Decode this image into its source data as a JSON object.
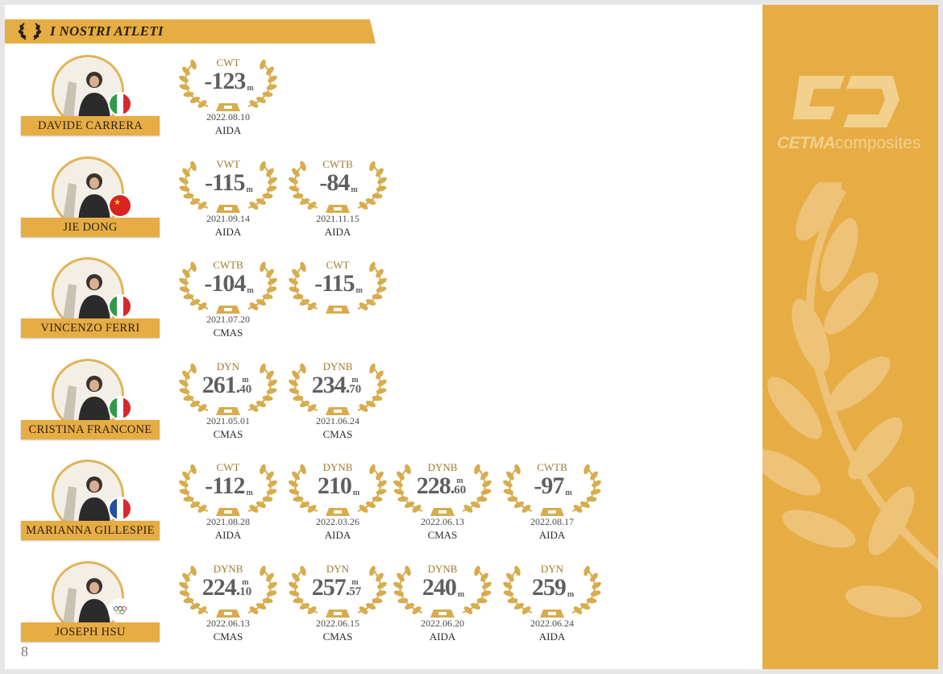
{
  "header": {
    "title": "I NOSTRI ATLETI",
    "icon": "laurel-icon"
  },
  "sidebar": {
    "brand": "CETMA",
    "brand_suffix": "composites",
    "color": "#e6ad45"
  },
  "page_number": "8",
  "athletes": [
    {
      "name": "DAVIDE CARRERA",
      "flag": "italy",
      "records": [
        {
          "discipline": "CWT",
          "value": "-123",
          "decimals": "",
          "date": "2022.08.10",
          "org": "AIDA"
        }
      ]
    },
    {
      "name": "JIE DONG",
      "flag": "china",
      "records": [
        {
          "discipline": "VWT",
          "value": "-115",
          "decimals": "",
          "date": "2021.09.14",
          "org": "AIDA"
        },
        {
          "discipline": "CWTB",
          "value": "-84",
          "decimals": "",
          "date": "2021.11.15",
          "org": "AIDA"
        }
      ]
    },
    {
      "name": "VINCENZO FERRI",
      "flag": "italy",
      "records": [
        {
          "discipline": "CWTB",
          "value": "-104",
          "decimals": "",
          "date": "2021.07.20",
          "org": "CMAS"
        },
        {
          "discipline": "CWT",
          "value": "-115",
          "decimals": "",
          "date": "",
          "org": ""
        }
      ]
    },
    {
      "name": "CRISTINA FRANCONE",
      "flag": "italy",
      "records": [
        {
          "discipline": "DYN",
          "value": "261",
          "decimals": "40",
          "date": "2021.05.01",
          "org": "CMAS"
        },
        {
          "discipline": "DYNB",
          "value": "234",
          "decimals": "70",
          "date": "2021.06.24",
          "org": "CMAS"
        }
      ]
    },
    {
      "name": "MARIANNA GILLESPIE",
      "flag": "france",
      "records": [
        {
          "discipline": "CWT",
          "value": "-112",
          "decimals": "",
          "date": "2021.08.28",
          "org": "AIDA"
        },
        {
          "discipline": "DYNB",
          "value": "210",
          "decimals": "",
          "date": "2022.03.26",
          "org": "AIDA"
        },
        {
          "discipline": "DYNB",
          "value": "228",
          "decimals": "60",
          "date": "2022.06.13",
          "org": "CMAS"
        },
        {
          "discipline": "CWTB",
          "value": "-97",
          "decimals": "",
          "date": "2022.08.17",
          "org": "AIDA"
        }
      ]
    },
    {
      "name": "JOSEPH HSU",
      "flag": "chinese-taipei-olympic",
      "records": [
        {
          "discipline": "DYNB",
          "value": "224",
          "decimals": "10",
          "date": "2022.06.13",
          "org": "CMAS"
        },
        {
          "discipline": "DYN",
          "value": "257",
          "decimals": "57",
          "date": "2022.06.15",
          "org": "CMAS"
        },
        {
          "discipline": "DYNB",
          "value": "240",
          "decimals": "",
          "date": "2022.06.20",
          "org": "AIDA"
        },
        {
          "discipline": "DYN",
          "value": "259",
          "decimals": "",
          "date": "2022.06.24",
          "org": "AIDA"
        }
      ]
    }
  ],
  "unit": "m"
}
